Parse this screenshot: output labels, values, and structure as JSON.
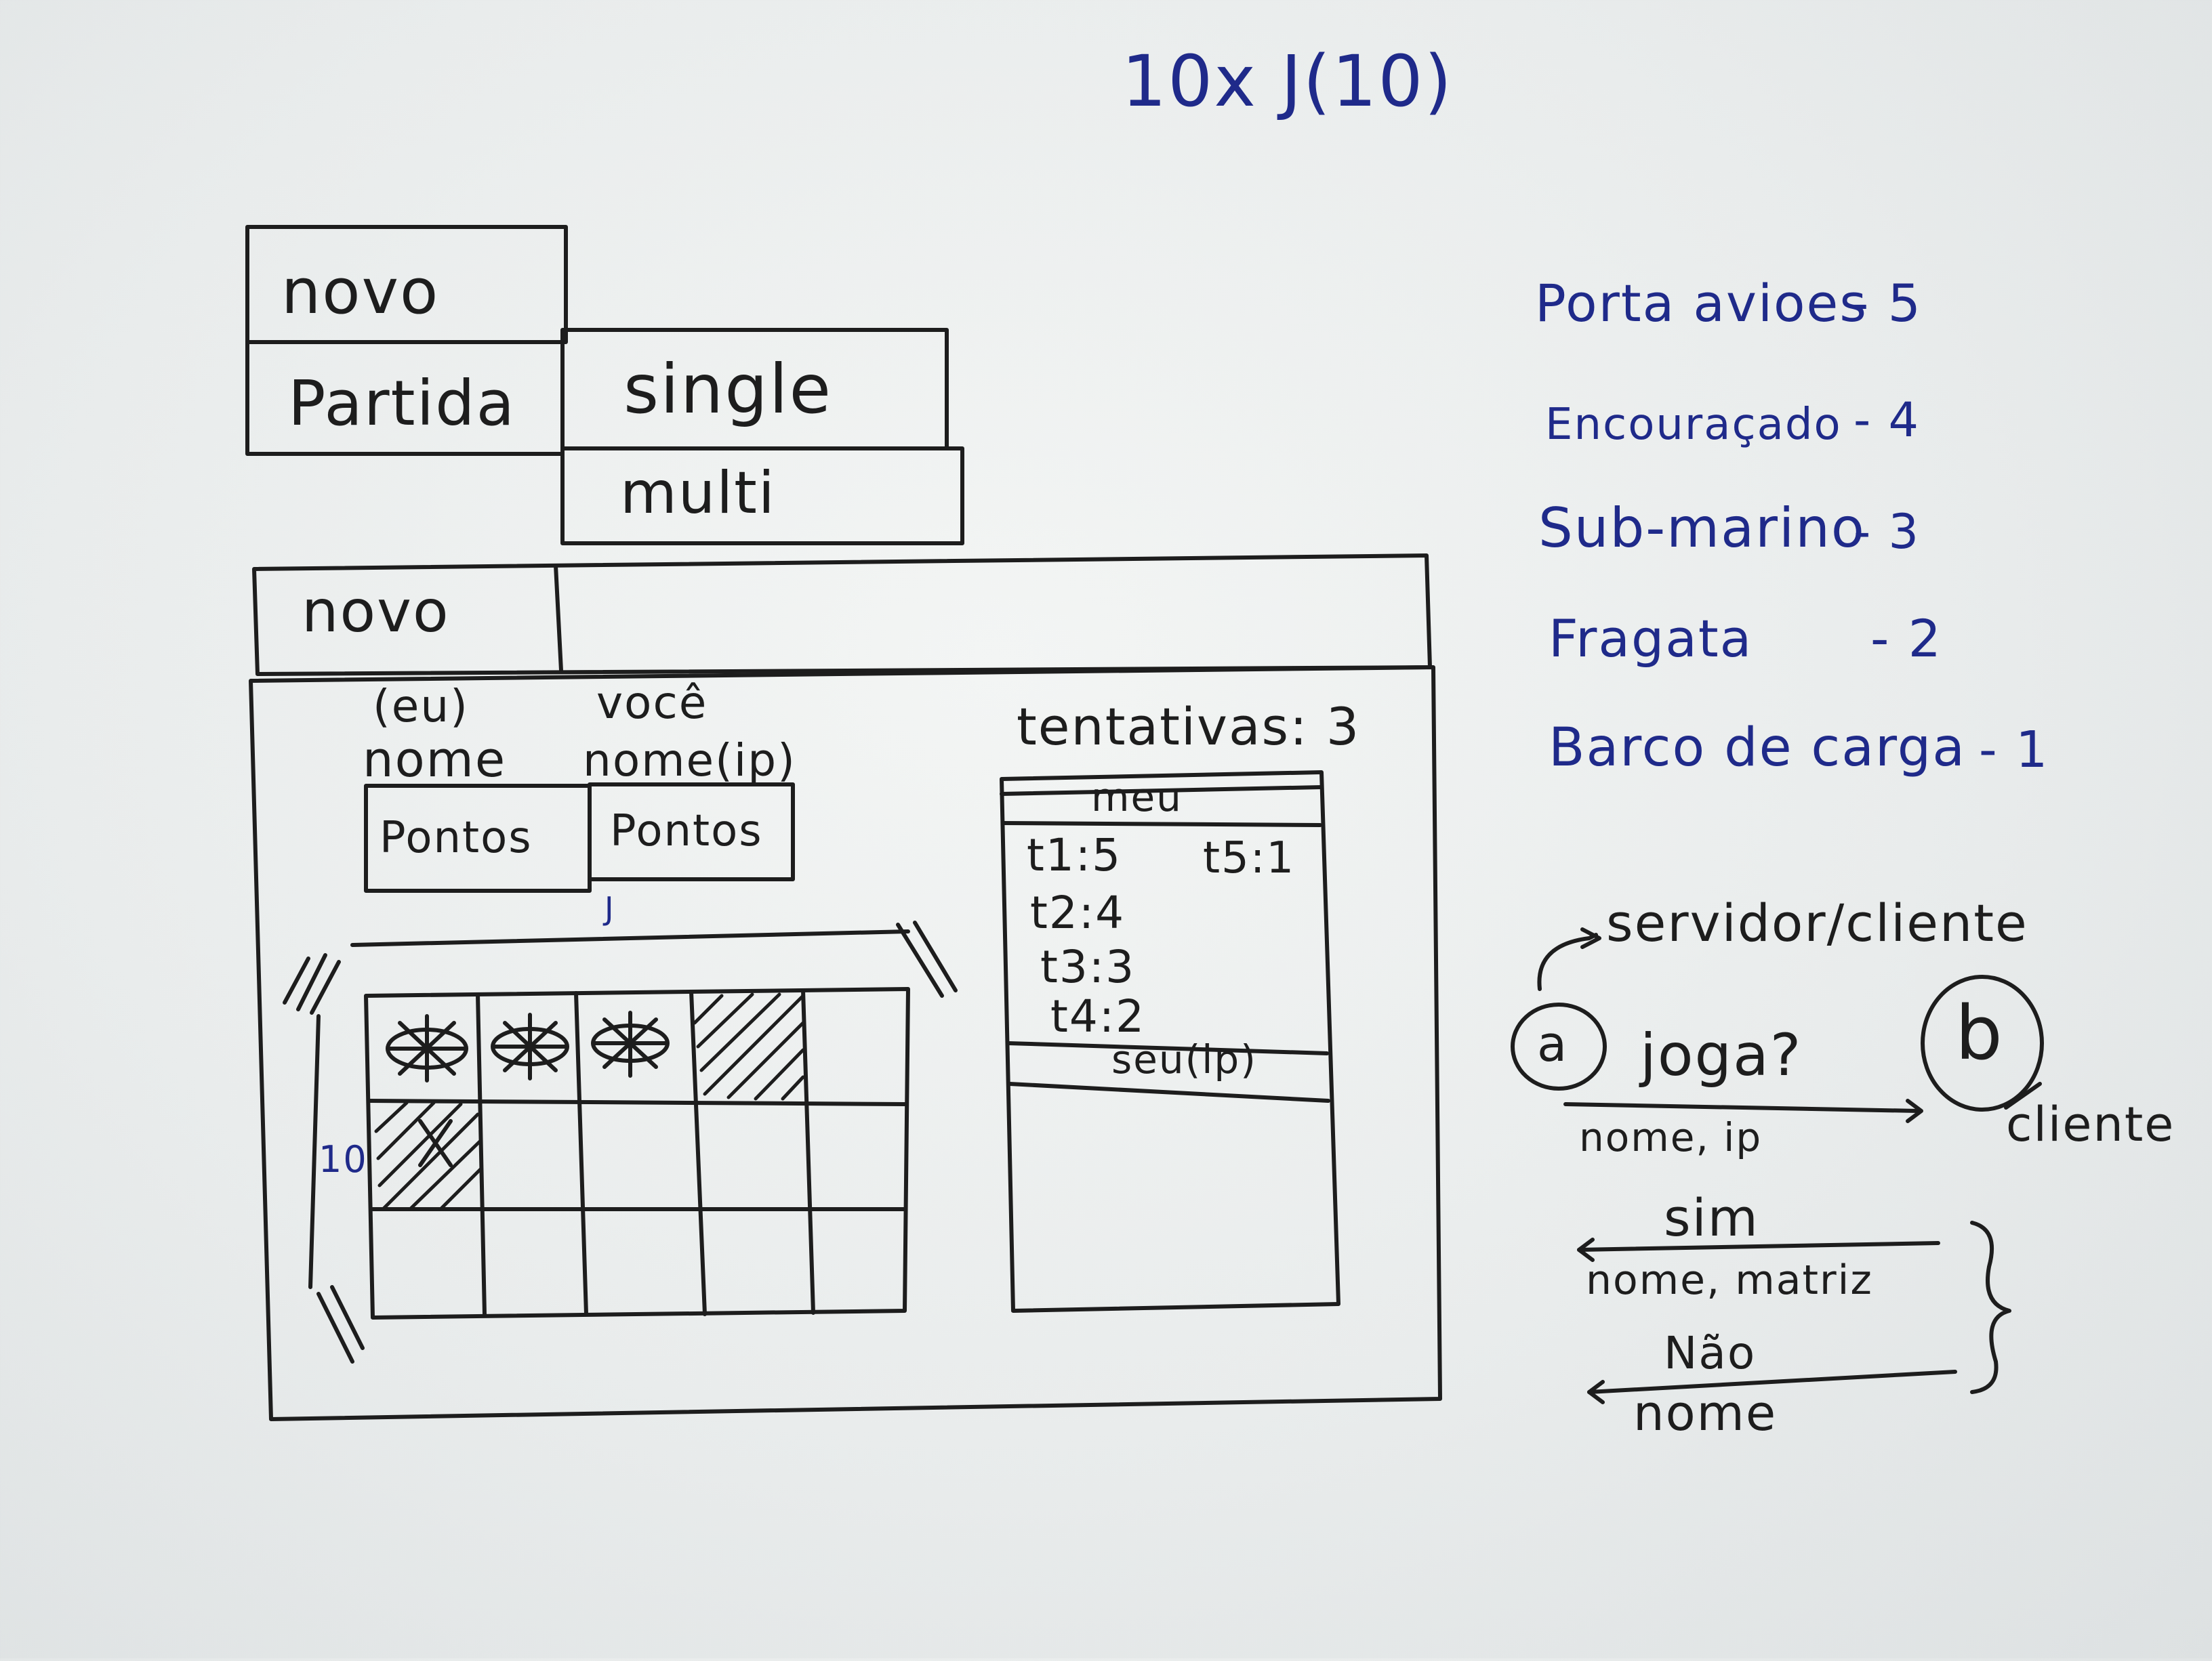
{
  "header": {
    "title": "10x J(10)"
  },
  "menu": {
    "novo": "novo",
    "partida": "Partida",
    "single": "single",
    "multi": "multi"
  },
  "window": {
    "tab": "novo",
    "player_me_line1": "(eu)",
    "player_me_line2": "nome",
    "player_you_line1": "você",
    "player_you_line2": "nome(ip)",
    "score_me": "Pontos",
    "score_you": "Pontos",
    "grid_col_label": "J",
    "grid_row_label": "10",
    "attempts": "tentativas: 3",
    "meu_header": "meu",
    "meu_items": [
      "t1:5",
      "t5:1",
      "t2:4",
      "t3:3",
      "t4:2"
    ],
    "seu_header": "seu(ip)"
  },
  "ships": [
    {
      "name": "Porta avioes",
      "size": "- 5"
    },
    {
      "name": "Encouraçado",
      "size": "- 4"
    },
    {
      "name": "Sub-marino",
      "size": "- 3"
    },
    {
      "name": "Fragata",
      "size": "- 2"
    },
    {
      "name": "Barco de carga",
      "size": "- 1"
    }
  ],
  "protocol": {
    "role_a": "servidor/cliente",
    "node_a": "a",
    "node_b": "b",
    "role_b": "cliente",
    "request": "joga?",
    "request_payload": "nome, ip",
    "yes": "sim",
    "yes_payload": "nome, matriz",
    "no": "Não",
    "no_payload": "nome"
  },
  "colors": {
    "ink": "#1d1d1d",
    "blue_marker": "#1f2a8a",
    "board": "#eceeee"
  }
}
